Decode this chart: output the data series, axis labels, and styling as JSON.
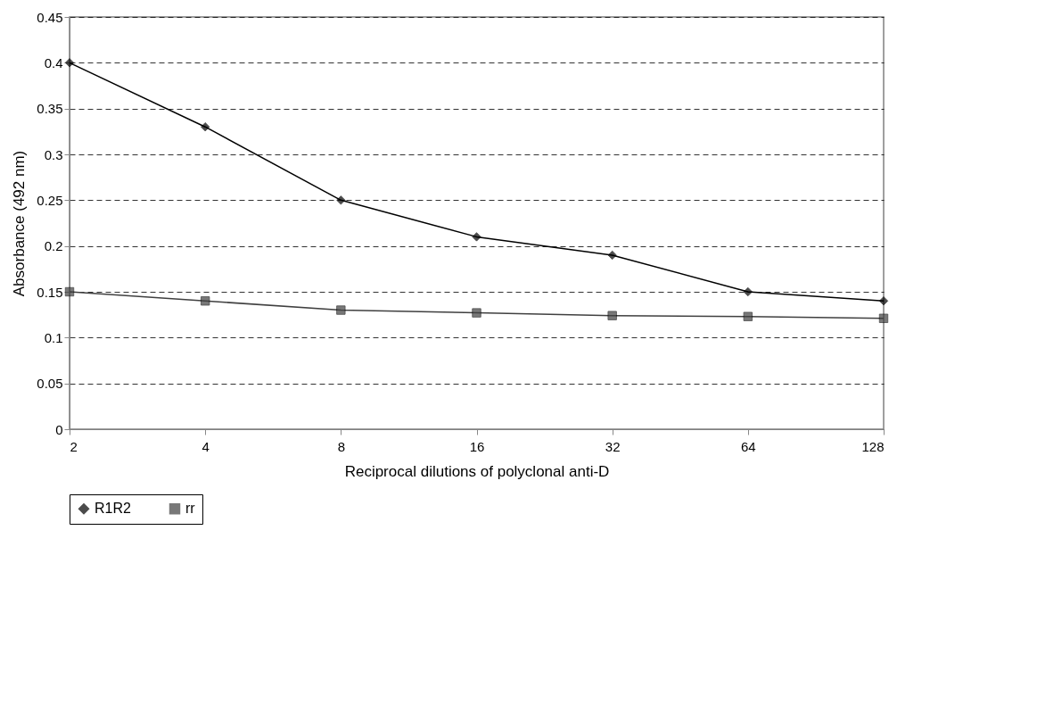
{
  "chart_data": {
    "type": "line",
    "xlabel": "Reciprocal dilutions of polyclonal anti-D",
    "ylabel": "Absorbance (492 nm)",
    "categories": [
      "2",
      "4",
      "8",
      "16",
      "32",
      "64",
      "128"
    ],
    "series": [
      {
        "name": "R1R2",
        "color": "#000000",
        "marker": "diamond",
        "values": [
          0.4,
          0.33,
          0.25,
          0.21,
          0.19,
          0.15,
          0.14
        ]
      },
      {
        "name": "rr",
        "color": "#404040",
        "marker": "square",
        "values": [
          0.15,
          0.14,
          0.13,
          0.127,
          0.124,
          0.123,
          0.121
        ]
      }
    ],
    "ylim": [
      0,
      0.45
    ],
    "yticks": [
      0,
      0.05,
      0.1,
      0.15,
      0.2,
      0.25,
      0.3,
      0.35,
      0.4,
      0.45
    ],
    "grid": "y",
    "legend": "bottom",
    "line_style": "solid"
  }
}
